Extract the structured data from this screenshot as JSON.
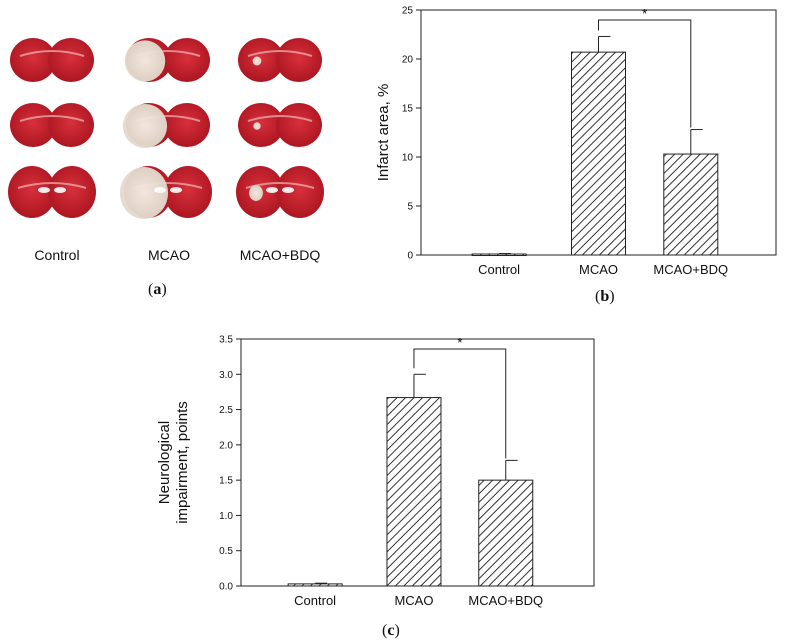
{
  "panel_a": {
    "label_open": "(",
    "label_letter": "a",
    "label_close": ")",
    "groups": [
      "Control",
      "MCAO",
      "MCAO+BDQ"
    ],
    "description_colors": {
      "healthy": "#c8202e",
      "infarct": "#e9e2d6",
      "background": "#ffffff"
    }
  },
  "panel_b": {
    "label_open": "(",
    "label_letter": "b",
    "label_close": ")"
  },
  "panel_c": {
    "label_open": "(",
    "label_letter": "c",
    "label_close": ")"
  },
  "chart_data": [
    {
      "id": "b",
      "type": "bar",
      "categories": [
        "Control",
        "MCAO",
        "MCAO+BDQ"
      ],
      "values": [
        0.1,
        20.7,
        10.3
      ],
      "errors": [
        0.05,
        1.6,
        2.5
      ],
      "ylabel": "Infarct area, %",
      "xlabel": "",
      "ylim": [
        0,
        25
      ],
      "yticks": [
        0,
        5,
        10,
        15,
        20,
        25
      ],
      "ytick_labels": [
        "0",
        "5",
        "10",
        "15",
        "20",
        "25"
      ],
      "significance": {
        "from": 1,
        "to": 2,
        "label": "*"
      },
      "bar_fill": "hatched"
    },
    {
      "id": "c",
      "type": "bar",
      "categories": [
        "Control",
        "MCAO",
        "MCAO+BDQ"
      ],
      "values": [
        0.03,
        2.67,
        1.5
      ],
      "errors": [
        0.01,
        0.33,
        0.28
      ],
      "ylabel_lines": [
        "Neurological",
        "impairment, points"
      ],
      "xlabel": "",
      "ylim": [
        0,
        3.5
      ],
      "yticks": [
        0,
        0.5,
        1.0,
        1.5,
        2.0,
        2.5,
        3.0,
        3.5
      ],
      "ytick_labels": [
        "0.0",
        "0.5",
        "1.0",
        "1.5",
        "2.0",
        "2.5",
        "3.0",
        "3.5"
      ],
      "significance": {
        "from": 1,
        "to": 2,
        "label": "*"
      },
      "bar_fill": "hatched"
    }
  ]
}
